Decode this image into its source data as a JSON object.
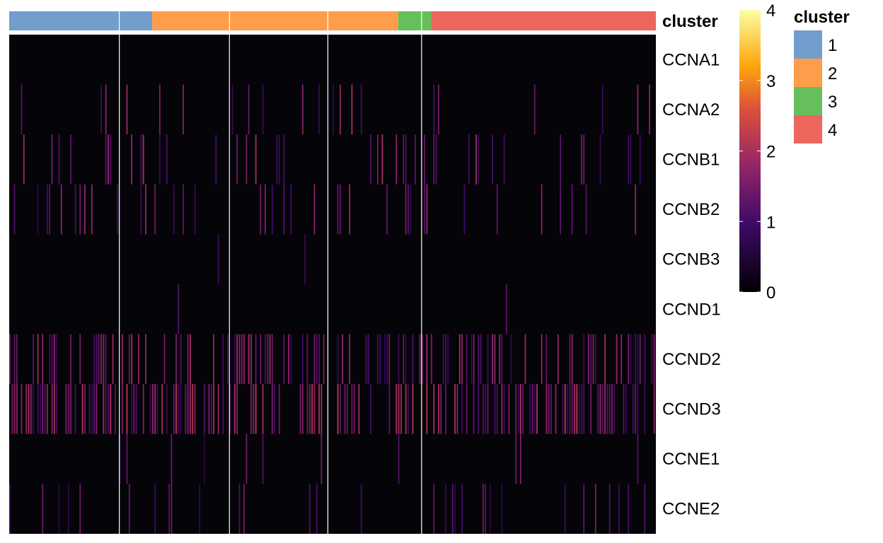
{
  "chart_data": {
    "type": "heatmap",
    "rows": [
      "CCNA1",
      "CCNA2",
      "CCNB1",
      "CCNB2",
      "CCNB3",
      "CCND1",
      "CCND2",
      "CCND3",
      "CCNE1",
      "CCNE2"
    ],
    "annotation": {
      "title": "cluster",
      "segments": [
        {
          "cluster": "1",
          "cells": 61
        },
        {
          "cluster": "2",
          "cells": 105
        },
        {
          "cluster": "3",
          "cells": 14
        },
        {
          "cluster": "4",
          "cells": 96
        }
      ]
    },
    "legend": {
      "title": "cluster",
      "entries": [
        {
          "label": "1",
          "color": "#729ECE"
        },
        {
          "label": "2",
          "color": "#FF9E4A"
        },
        {
          "label": "3",
          "color": "#67BF5C"
        },
        {
          "label": "4",
          "color": "#ED665D"
        }
      ],
      "placement": "right"
    },
    "colorscale": {
      "name": "inferno",
      "min": 0,
      "max": 4,
      "ticks": [
        "0",
        "1",
        "2",
        "3",
        "4"
      ],
      "colors": [
        "#000004",
        "#420A68",
        "#932667",
        "#DD513A",
        "#FCA50A",
        "#FCFFA4"
      ],
      "placement": "right"
    },
    "sample_splits": [
      47,
      94,
      136,
      176
    ],
    "expression_density": {
      "CCNA1": 0.0,
      "CCNA2": 0.09,
      "CCNB1": 0.12,
      "CCNB2": 0.12,
      "CCNB3": 0.004,
      "CCND1": 0.004,
      "CCND2": 0.4,
      "CCND3": 0.55,
      "CCNE1": 0.04,
      "CCNE2": 0.08
    },
    "expression_level": {
      "CCNA1": 0.0,
      "CCNA2": 1.4,
      "CCNB1": 1.4,
      "CCNB2": 1.3,
      "CCNB3": 1.0,
      "CCND1": 1.2,
      "CCND2": 1.4,
      "CCND3": 1.5,
      "CCNE1": 1.1,
      "CCNE2": 1.1
    }
  }
}
